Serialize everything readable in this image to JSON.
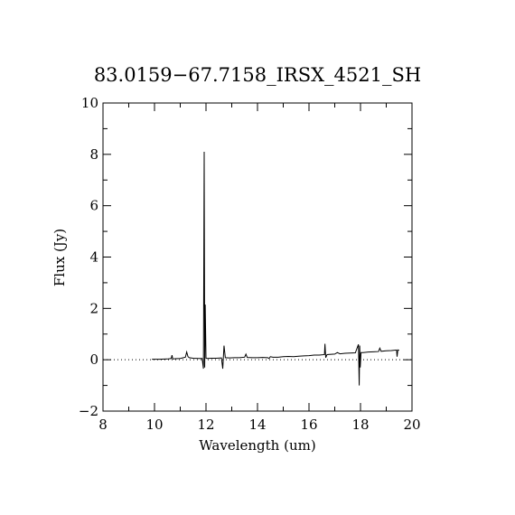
{
  "chart_data": {
    "type": "line",
    "title": "83.0159−67.7158_IRSX_4521_SH",
    "xlabel": "Wavelength (um)",
    "ylabel": "Flux (Jy)",
    "xlim": [
      8,
      20
    ],
    "ylim": [
      -2,
      10
    ],
    "x_ticks": [
      8,
      10,
      12,
      14,
      16,
      18,
      20
    ],
    "x_tick_labels": [
      "8",
      "10",
      "12",
      "14",
      "16",
      "18",
      "20"
    ],
    "y_ticks": [
      -2,
      0,
      2,
      4,
      6,
      8,
      10
    ],
    "y_tick_labels": [
      "−2",
      "0",
      "2",
      "4",
      "6",
      "8",
      "10"
    ],
    "zero_line": {
      "y": 0,
      "style": "dotted"
    },
    "grid": false,
    "legend": "none",
    "series": [
      {
        "color": "#000000",
        "x": [
          9.9,
          10.2,
          10.5,
          10.65,
          10.68,
          10.71,
          10.8,
          11.0,
          11.2,
          11.25,
          11.3,
          11.35,
          11.5,
          11.7,
          11.85,
          11.9,
          11.93,
          11.95,
          11.97,
          12.0,
          12.05,
          12.2,
          12.4,
          12.6,
          12.65,
          12.7,
          12.75,
          12.9,
          13.1,
          13.3,
          13.5,
          13.55,
          13.6,
          13.8,
          14.0,
          14.2,
          14.4,
          14.45,
          14.5,
          14.6,
          14.8,
          15.0,
          15.2,
          15.4,
          15.6,
          15.8,
          16.0,
          16.2,
          16.4,
          16.6,
          16.62,
          16.65,
          16.7,
          16.8,
          17.0,
          17.1,
          17.2,
          17.4,
          17.6,
          17.8,
          17.92,
          17.95,
          17.97,
          17.99,
          18.02,
          18.1,
          18.3,
          18.5,
          18.7,
          18.75,
          18.8,
          19.0,
          19.2,
          19.4,
          19.42,
          19.45,
          19.5
        ],
        "y": [
          0.02,
          0.02,
          0.03,
          0.05,
          0.18,
          0.03,
          0.04,
          0.05,
          0.1,
          0.3,
          0.12,
          0.08,
          0.06,
          0.05,
          0.05,
          -0.35,
          8.1,
          -0.3,
          2.15,
          0.06,
          0.05,
          0.06,
          0.06,
          0.07,
          -0.35,
          0.55,
          0.08,
          0.07,
          0.08,
          0.08,
          0.1,
          0.22,
          0.09,
          0.08,
          0.08,
          0.09,
          0.08,
          0.05,
          0.12,
          0.1,
          0.1,
          0.12,
          0.13,
          0.12,
          0.14,
          0.15,
          0.16,
          0.18,
          0.18,
          0.2,
          0.62,
          0.08,
          0.2,
          0.21,
          0.22,
          0.28,
          0.23,
          0.25,
          0.26,
          0.27,
          0.6,
          -1.0,
          0.55,
          -0.3,
          0.28,
          0.28,
          0.3,
          0.31,
          0.32,
          0.45,
          0.33,
          0.35,
          0.36,
          0.38,
          0.12,
          0.38,
          0.37
        ]
      }
    ]
  }
}
